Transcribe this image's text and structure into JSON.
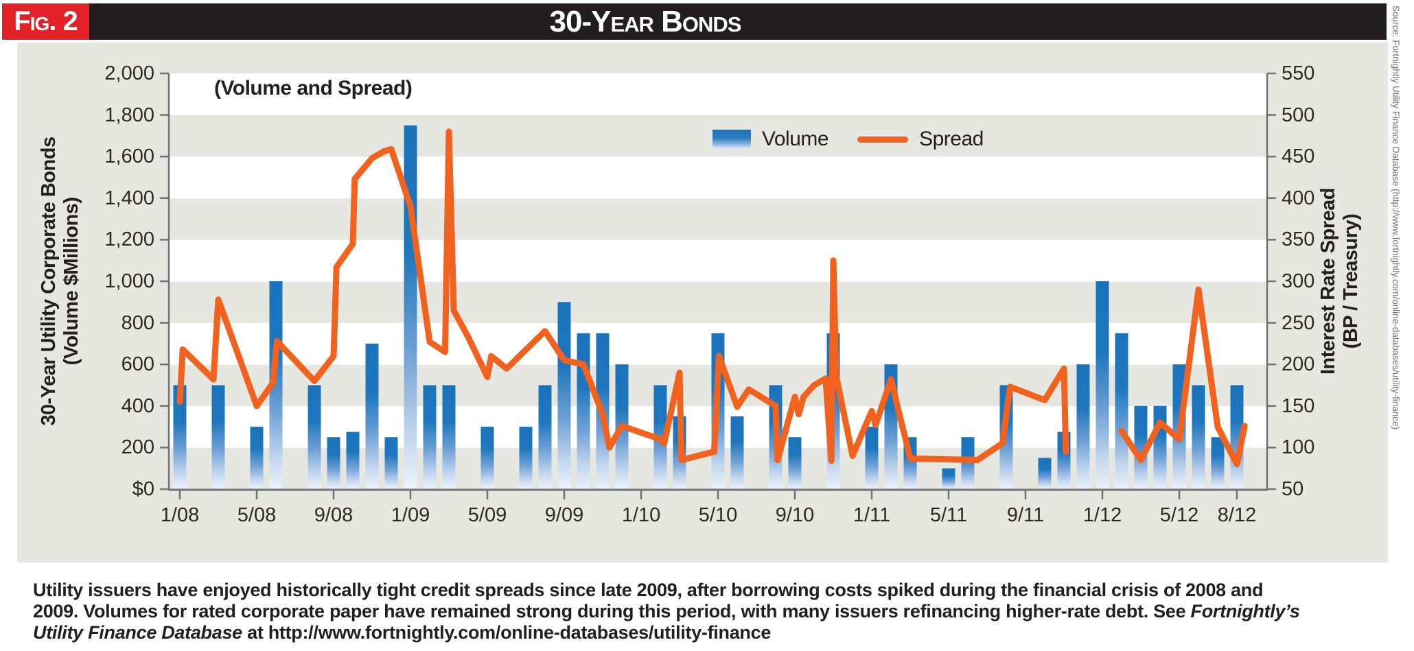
{
  "banner": {
    "fig_label": "Fig. 2",
    "title": "30-Year Bonds"
  },
  "source_note": "Source: Fortnightly Utility Finance Database (http://www.fortnightly.com/online-databases/utility-finance)",
  "caption": {
    "lines": [
      [
        {
          "text": "Utility issuers have enjoyed historically tight credit spreads since late 2009, after borrowing costs spiked during the financial crisis of 2008 and",
          "italic": false
        }
      ],
      [
        {
          "text": "2009. Volumes for rated corporate paper have remained strong during this period, with many issuers refinancing higher-rate debt. See ",
          "italic": false
        },
        {
          "text": "Fortnightly’s",
          "italic": true
        }
      ],
      [
        {
          "text": "Utility Finance Database",
          "italic": true
        },
        {
          "text": " at http://www.fortnightly.com/online-databases/utility-finance",
          "italic": false
        }
      ]
    ]
  },
  "colors": {
    "accent_red": "#e32227",
    "banner_black": "#221e1f",
    "panel_gray": "#e6e7e1",
    "band_white": "#ffffff",
    "bar_blue": "#1b74bb",
    "bar_fade": "#edf3fb",
    "line_orange": "#f2621f",
    "axis_gray": "#707175",
    "text_dark": "#2d2a26"
  },
  "chart_data": {
    "type": "combo_bar_line",
    "inner_title": "(Volume and Spread)",
    "grid": "alternating horizontal bands every 200 units",
    "legend_position": "top-center",
    "legend": [
      {
        "label": "Volume",
        "type": "bar"
      },
      {
        "label": "Spread",
        "type": "line"
      }
    ],
    "y_left": {
      "title_line1": "30-Year Utility Corporate Bonds",
      "title_line2": "(Volume $Millions)",
      "min": 0,
      "max": 2000,
      "step": 200,
      "tick_labels": [
        "$0",
        "200",
        "400",
        "600",
        "800",
        "1,000",
        "1,200",
        "1,400",
        "1,600",
        "1,800",
        "2,000"
      ]
    },
    "y_right": {
      "title_line1": "Interest Rate Spread",
      "title_line2": "(BP / Treasury)",
      "min": 50,
      "max": 550,
      "step": 50,
      "tick_labels": [
        "50",
        "100",
        "150",
        "200",
        "250",
        "300",
        "350",
        "400",
        "450",
        "500",
        "550"
      ]
    },
    "x_axis": {
      "n_slots": 56,
      "tick_labels": [
        "1/08",
        "5/08",
        "9/08",
        "1/09",
        "5/09",
        "9/09",
        "1/10",
        "5/10",
        "9/10",
        "1/11",
        "5/11",
        "9/11",
        "1/12",
        "5/12",
        "8/12"
      ],
      "tick_indices": [
        0,
        4,
        8,
        12,
        16,
        20,
        24,
        28,
        32,
        36,
        40,
        44,
        48,
        52,
        55
      ]
    },
    "months": [
      "1/08",
      "2/08",
      "3/08",
      "4/08",
      "5/08",
      "6/08",
      "7/08",
      "8/08",
      "9/08",
      "10/08",
      "11/08",
      "12/08",
      "1/09",
      "2/09",
      "3/09",
      "4/09",
      "5/09",
      "6/09",
      "7/09",
      "8/09",
      "9/09",
      "10/09",
      "11/09",
      "12/09",
      "1/10",
      "2/10",
      "3/10",
      "4/10",
      "5/10",
      "6/10",
      "7/10",
      "8/10",
      "9/10",
      "10/10",
      "11/10",
      "12/10",
      "1/11",
      "2/11",
      "3/11",
      "4/11",
      "5/11",
      "6/11",
      "7/11",
      "8/11",
      "9/11",
      "10/11",
      "11/11",
      "12/11",
      "1/12",
      "2/12",
      "3/12",
      "4/12",
      "5/12",
      "6/12",
      "7/12",
      "8/12"
    ],
    "volume_millions": [
      500,
      0,
      500,
      0,
      300,
      1000,
      0,
      500,
      250,
      275,
      700,
      250,
      1750,
      500,
      500,
      0,
      300,
      0,
      300,
      500,
      900,
      750,
      750,
      600,
      0,
      500,
      350,
      0,
      750,
      350,
      0,
      500,
      250,
      0,
      750,
      0,
      300,
      600,
      250,
      0,
      100,
      250,
      0,
      500,
      0,
      150,
      275,
      600,
      1000,
      750,
      400,
      400,
      600,
      500,
      250,
      500
    ],
    "spread_bp_segments": [
      [
        [
          0,
          155
        ],
        [
          0.15,
          218
        ],
        [
          1.75,
          182
        ],
        [
          2,
          278
        ],
        [
          4,
          150
        ],
        [
          4.85,
          178
        ],
        [
          5.05,
          228
        ],
        [
          7,
          180
        ],
        [
          8,
          210
        ],
        [
          8.15,
          317
        ],
        [
          9,
          345
        ],
        [
          9.1,
          423
        ],
        [
          10,
          448
        ],
        [
          10.6,
          456
        ],
        [
          11,
          459
        ],
        [
          12,
          390
        ],
        [
          13,
          227
        ],
        [
          13.8,
          215
        ],
        [
          14,
          480
        ],
        [
          14.25,
          265
        ],
        [
          15,
          233
        ],
        [
          16,
          185
        ],
        [
          16.2,
          210
        ],
        [
          17,
          195
        ],
        [
          19,
          240
        ],
        [
          20,
          205
        ],
        [
          21,
          200
        ],
        [
          22,
          140
        ],
        [
          22.35,
          100
        ],
        [
          23,
          126
        ],
        [
          25,
          110
        ],
        [
          25.2,
          105
        ],
        [
          26,
          190
        ],
        [
          26.1,
          85
        ],
        [
          27.8,
          95
        ],
        [
          28.05,
          210
        ],
        [
          29,
          149
        ],
        [
          29.6,
          170
        ],
        [
          31,
          150
        ],
        [
          31.1,
          85
        ],
        [
          32,
          161
        ],
        [
          32.2,
          140
        ],
        [
          32.45,
          161
        ],
        [
          33,
          175
        ],
        [
          33.6,
          183
        ],
        [
          33.9,
          84
        ],
        [
          34,
          325
        ],
        [
          34.15,
          186
        ],
        [
          35,
          90
        ],
        [
          36,
          144
        ],
        [
          36.2,
          127
        ],
        [
          37,
          182
        ],
        [
          38,
          87
        ],
        [
          41.5,
          85
        ],
        [
          42.8,
          105
        ],
        [
          43.2,
          173
        ],
        [
          44,
          166
        ],
        [
          45,
          157
        ],
        [
          46,
          195
        ],
        [
          46.1,
          95
        ]
      ],
      [
        [
          49,
          120
        ],
        [
          50,
          85
        ],
        [
          51,
          130
        ],
        [
          52,
          110
        ],
        [
          53,
          290
        ],
        [
          54,
          125
        ],
        [
          55,
          80
        ],
        [
          55.4,
          126
        ]
      ]
    ]
  }
}
